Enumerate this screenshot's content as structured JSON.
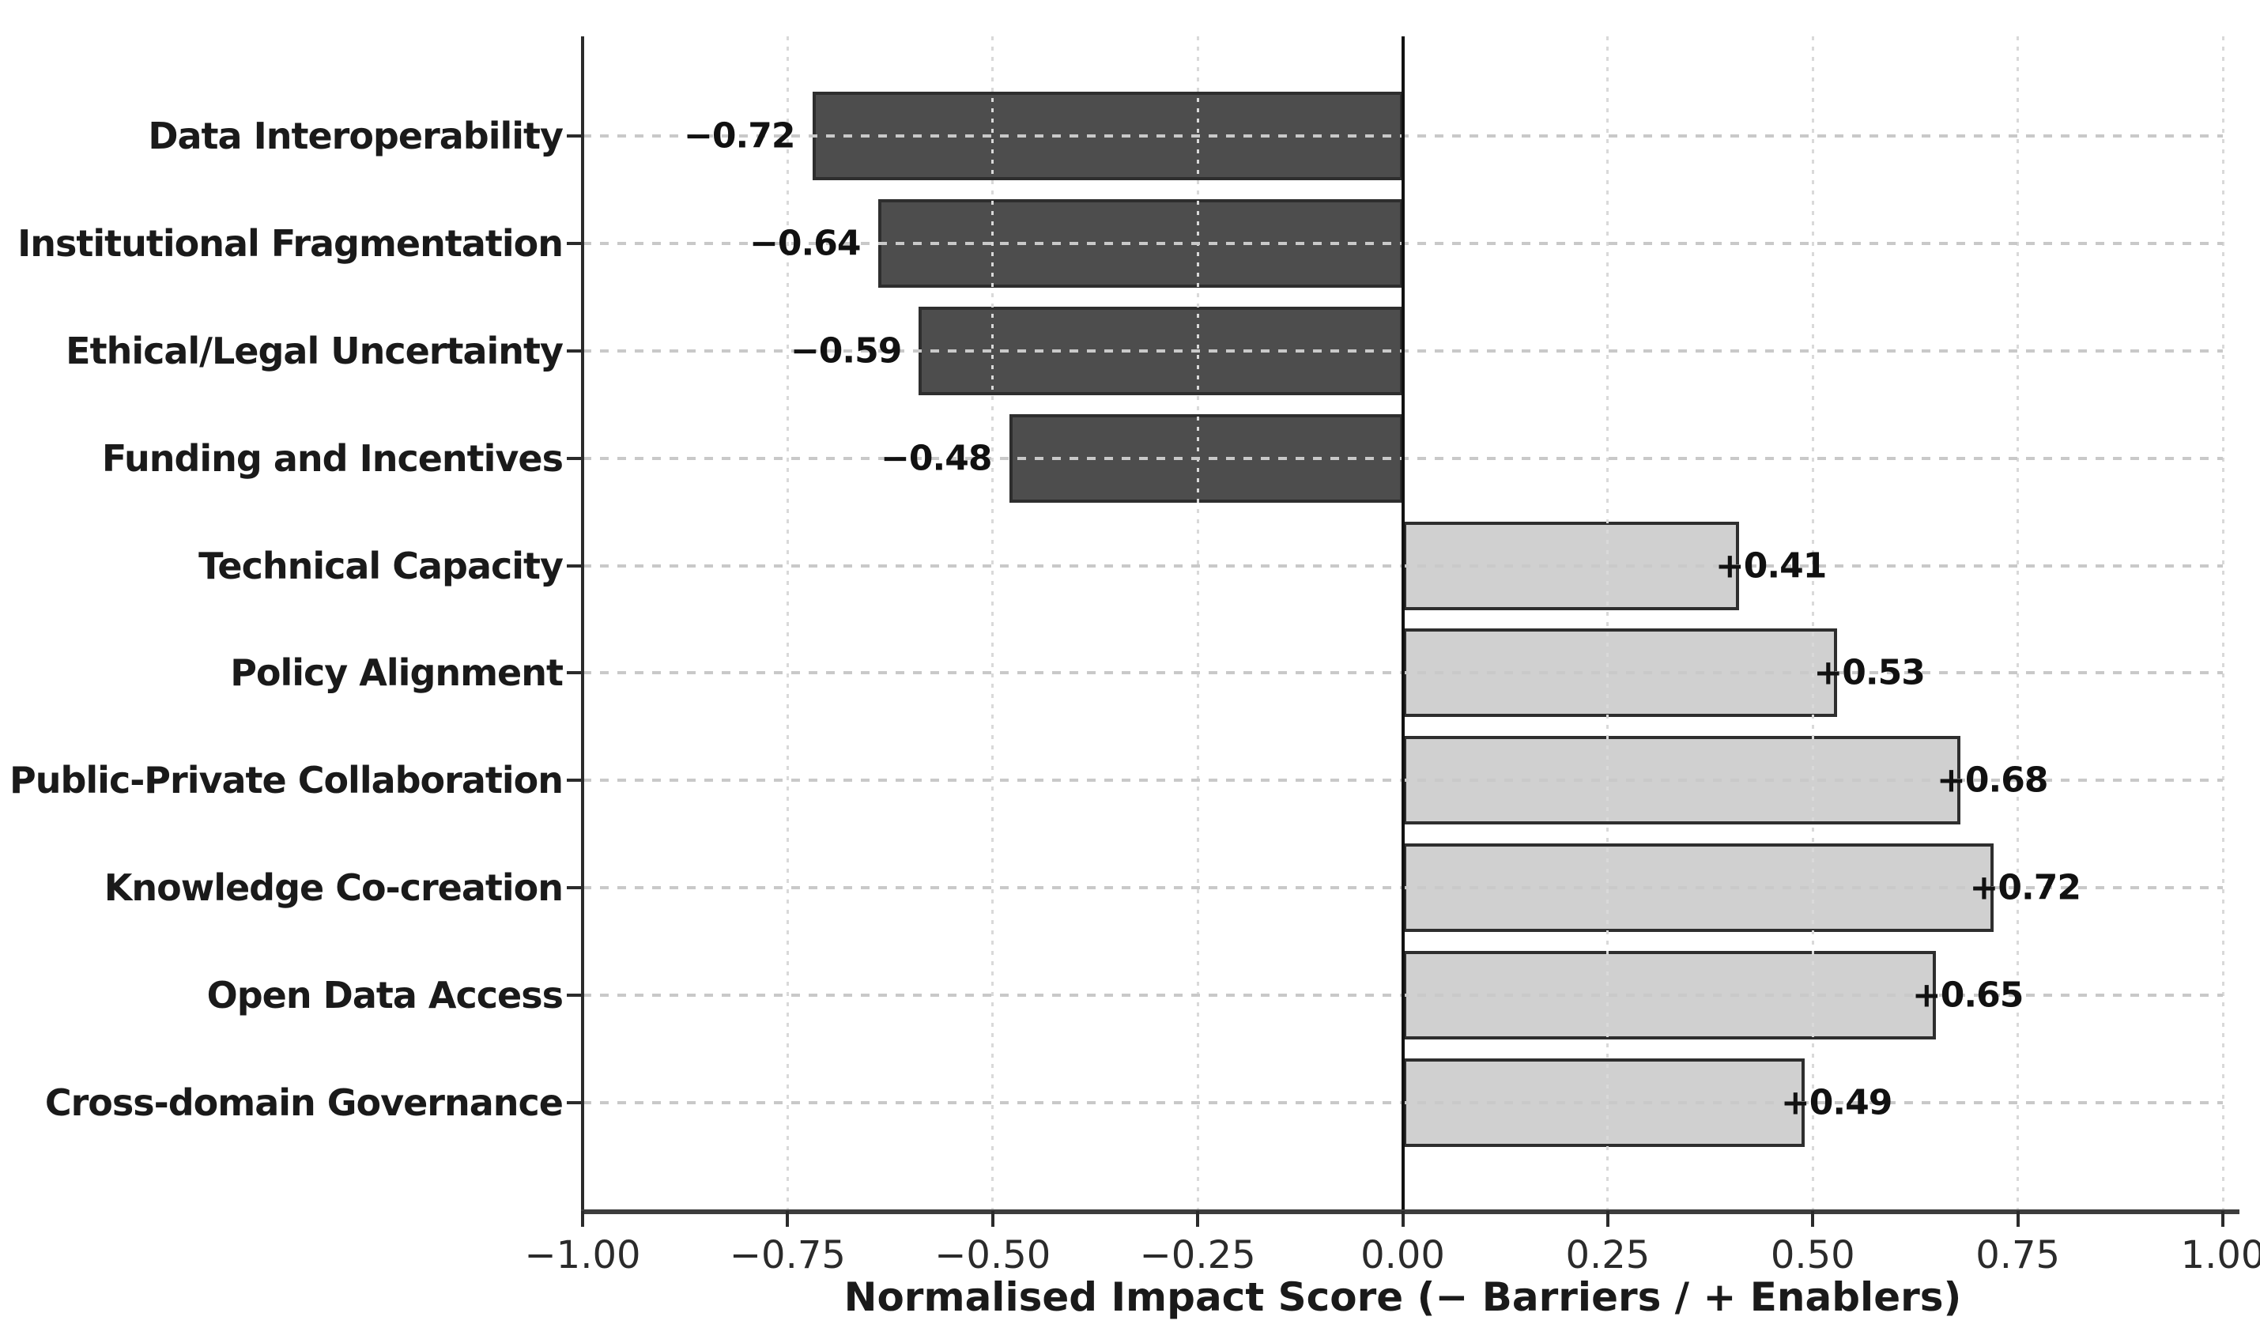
{
  "chart_data": {
    "type": "bar",
    "orientation": "horizontal",
    "title": "",
    "xlabel": "Normalised Impact Score (− Barriers / + Enablers)",
    "xlim": [
      -1.0,
      1.0
    ],
    "xticks": [
      -1.0,
      -0.75,
      -0.5,
      -0.25,
      0.0,
      0.25,
      0.5,
      0.75,
      1.0
    ],
    "xtick_labels": [
      "−1.00",
      "−0.75",
      "−0.50",
      "−0.25",
      "0.00",
      "0.25",
      "0.50",
      "0.75",
      "1.00"
    ],
    "categories": [
      "Data Interoperability",
      "Institutional Fragmentation",
      "Ethical/Legal Uncertainty",
      "Funding and Incentives",
      "Technical Capacity",
      "Policy Alignment",
      "Public-Private Collaboration",
      "Knowledge Co-creation",
      "Open Data Access",
      "Cross-domain Governance"
    ],
    "values": [
      -0.72,
      -0.64,
      -0.59,
      -0.48,
      0.41,
      0.53,
      0.68,
      0.72,
      0.65,
      0.49
    ],
    "bar_value_labels": [
      "−0.72",
      "−0.64",
      "−0.59",
      "−0.48",
      "+0.41",
      "+0.53",
      "+0.68",
      "+0.72",
      "+0.65",
      "+0.49"
    ],
    "series_semantics": {
      "negative": "Barriers (dark bars)",
      "positive": "Enablers (light bars)"
    },
    "grid": {
      "horizontal": true,
      "vertical": true,
      "style": "dashed",
      "drawn_above_bars": true
    },
    "legend": "none",
    "colors": {
      "barrier_bar": "#4d4d4d",
      "enabler_bar": "#d0d0d0",
      "bar_edge": "#2e2e2e",
      "grid_line": "#c9c9c9",
      "axis_spine": "#2b2b2b",
      "zero_line": "#111111",
      "text": "#1a1a1a",
      "background": "#ffffff"
    }
  }
}
